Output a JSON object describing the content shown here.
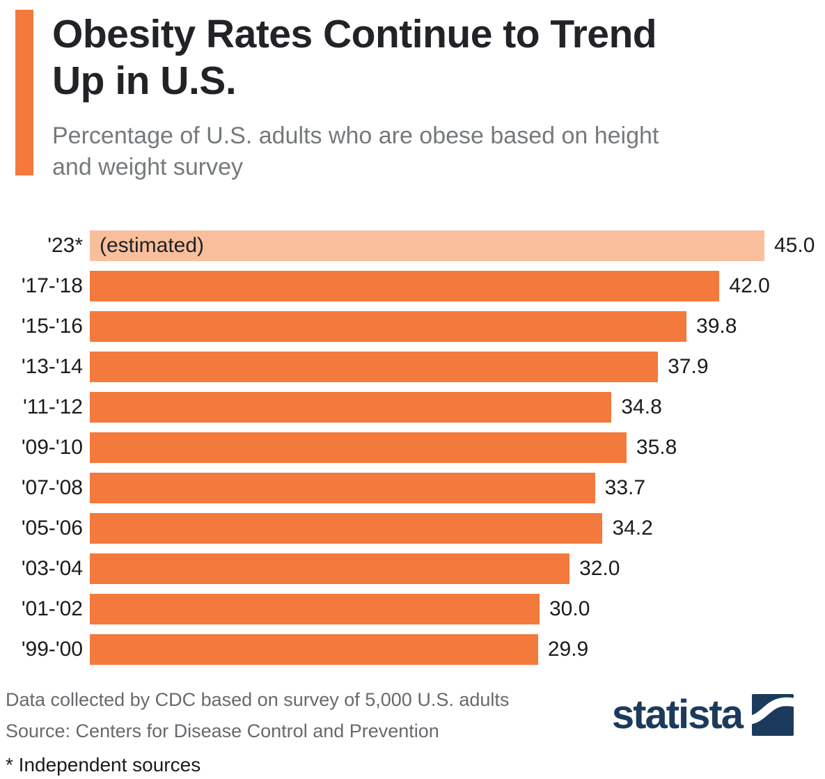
{
  "header": {
    "title": "Obesity Rates Continue to Trend Up in U.S.",
    "subtitle": "Percentage of U.S. adults who are obese based on height and weight survey"
  },
  "chart_data": {
    "type": "bar",
    "orientation": "horizontal",
    "title": "Obesity Rates Continue to Trend Up in U.S.",
    "xlabel": "",
    "ylabel": "",
    "xlim": [
      0,
      45
    ],
    "grid": false,
    "legend": false,
    "categories": [
      "'23*",
      "'17-'18",
      "'15-'16",
      "'13-'14",
      "'11-'12",
      "'09-'10",
      "'07-'08",
      "'05-'06",
      "'03-'04",
      "'01-'02",
      "'99-'00"
    ],
    "values": [
      45.0,
      42.0,
      39.8,
      37.9,
      34.8,
      35.8,
      33.7,
      34.2,
      32.0,
      30.0,
      29.9
    ],
    "value_labels": [
      "45.0",
      "42.0",
      "39.8",
      "37.9",
      "34.8",
      "35.8",
      "33.7",
      "34.2",
      "32.0",
      "30.0",
      "29.9"
    ],
    "annotations": {
      "0": "(estimated)"
    },
    "estimated_rows": [
      0
    ],
    "bar_color": "#f4793c",
    "estimated_bar_color": "#f9bf9d"
  },
  "footer": {
    "note1": "Data collected by CDC based on survey of 5,000 U.S. adults",
    "source": "Source: Centers for Disease Control and Prevention",
    "asterisk_note": "* Independent sources",
    "logo_text": "statista"
  },
  "colors": {
    "accent_orange": "#f4793c",
    "light_orange": "#f9bf9d",
    "title_text": "#212327",
    "subtitle_text": "#75797c",
    "note_text": "#66696e",
    "logo_navy": "#1c3b5c"
  }
}
